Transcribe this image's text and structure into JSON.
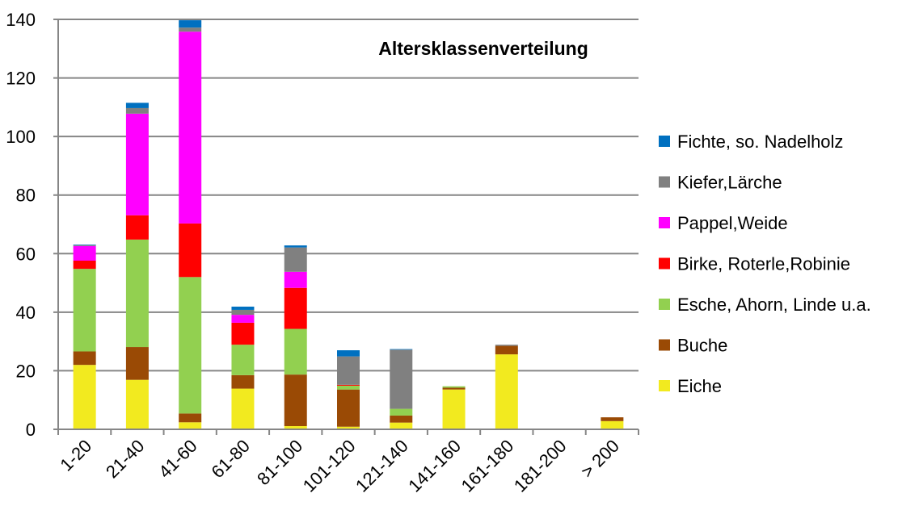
{
  "chart_data": {
    "type": "bar",
    "stacked": true,
    "title": "Altersklassenverteilung",
    "xlabel": "",
    "ylabel": "",
    "ylim": [
      0,
      140
    ],
    "yticks": [
      0,
      20,
      40,
      60,
      80,
      100,
      120,
      140
    ],
    "grid": true,
    "legend_position": "right",
    "categories": [
      "1-20",
      "21-40",
      "41-60",
      "61-80",
      "81-100",
      "101-120",
      "121-140",
      "141-160",
      "161-180",
      "181-200",
      "> 200"
    ],
    "series": [
      {
        "name": "Eiche",
        "color": "#F2EA1F",
        "values": [
          22,
          16.9,
          2.4,
          13.9,
          1.1,
          0.9,
          2.3,
          13.6,
          25.6,
          0,
          2.8
        ]
      },
      {
        "name": "Buche",
        "color": "#9A4A05",
        "values": [
          4.6,
          11.2,
          3,
          4.6,
          17.6,
          12.7,
          2.4,
          0.6,
          2.9,
          0,
          1.3
        ]
      },
      {
        "name": "Esche, Ahorn, Linde u.a.",
        "color": "#92D050",
        "values": [
          28.2,
          36.7,
          46.6,
          10.4,
          15.6,
          1.3,
          2.3,
          0.5,
          0,
          0,
          0
        ]
      },
      {
        "name": "Birke, Roterle,Robinie",
        "color": "#FF0000",
        "values": [
          2.8,
          8.3,
          18.3,
          7.5,
          14,
          0.3,
          0,
          0,
          0,
          0,
          0
        ]
      },
      {
        "name": "Pappel,Weide",
        "color": "#FF00FF",
        "values": [
          5,
          34.7,
          65.5,
          2.7,
          5.5,
          0,
          0,
          0,
          0,
          0,
          0
        ]
      },
      {
        "name": "Kiefer,Lärche",
        "color": "#808080",
        "values": [
          0.3,
          1.9,
          1.4,
          1.7,
          8.3,
          9.7,
          20.2,
          0,
          0.4,
          0,
          0
        ]
      },
      {
        "name": "Fichte, so. Nadelholz",
        "color": "#0070C0",
        "values": [
          0.2,
          1.8,
          2.5,
          1.1,
          0.7,
          2.1,
          0.2,
          0,
          0,
          0,
          0
        ]
      }
    ]
  }
}
